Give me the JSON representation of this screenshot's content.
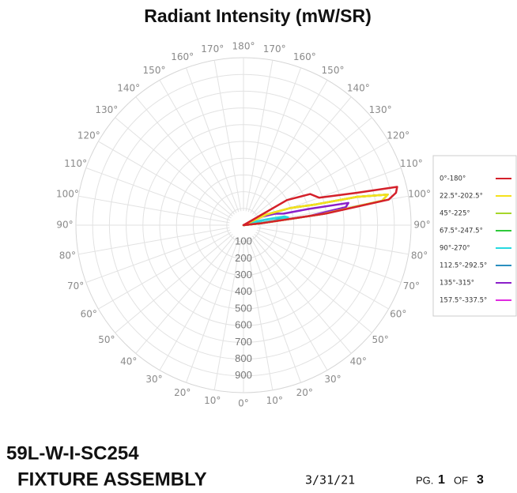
{
  "chart_data": {
    "type": "polar",
    "title": "Radiant Intensity (mW/SR)",
    "angles": [
      90,
      94,
      96,
      98,
      100,
      102,
      104,
      106,
      110,
      115,
      120,
      130
    ],
    "rlim": [
      0,
      1000
    ],
    "rticks": [
      100,
      200,
      300,
      400,
      500,
      600,
      700,
      800,
      900
    ],
    "angle_ticks": [
      {
        "value": 0,
        "label": "0°"
      },
      {
        "value": 10,
        "label": "10°"
      },
      {
        "value": 20,
        "label": "20°"
      },
      {
        "value": 30,
        "label": "30°"
      },
      {
        "value": 40,
        "label": "40°"
      },
      {
        "value": 50,
        "label": "50°"
      },
      {
        "value": 60,
        "label": "60°"
      },
      {
        "value": 70,
        "label": "70°"
      },
      {
        "value": 80,
        "label": "80°"
      },
      {
        "value": 90,
        "label": "90°"
      },
      {
        "value": 100,
        "label": "100°"
      },
      {
        "value": 110,
        "label": "110°"
      },
      {
        "value": 120,
        "label": "120°"
      },
      {
        "value": 130,
        "label": "130°"
      },
      {
        "value": 140,
        "label": "140°"
      },
      {
        "value": 150,
        "label": "150°"
      },
      {
        "value": 160,
        "label": "160°"
      },
      {
        "value": 170,
        "label": "170°"
      },
      {
        "value": 180,
        "label": "180°"
      }
    ],
    "grid": true,
    "series": [
      {
        "name": "0°-180°",
        "color": "#d4202a",
        "values": [
          0,
          0,
          100,
          500,
          880,
          930,
          945,
          700,
          480,
          440,
          300,
          0
        ]
      },
      {
        "name": "22.5°-202.5°",
        "color": "#f5e11c",
        "values": [
          0,
          0,
          100,
          480,
          840,
          880,
          700,
          450,
          300,
          150,
          0,
          0
        ]
      },
      {
        "name": "45°-225°",
        "color": "#a6d62a",
        "values": [
          0,
          0,
          100,
          480,
          840,
          880,
          700,
          450,
          300,
          150,
          0,
          0
        ]
      },
      {
        "name": "67.5°-247.5°",
        "color": "#2ec93a",
        "values": [
          0,
          0,
          100,
          480,
          840,
          880,
          700,
          450,
          300,
          150,
          0,
          0
        ]
      },
      {
        "name": "90°-270°",
        "color": "#27d9e0",
        "values": [
          0,
          0,
          50,
          200,
          270,
          250,
          150,
          80,
          0,
          0,
          0,
          0
        ]
      },
      {
        "name": "112.5°-292.5°",
        "color": "#2a8fbf",
        "values": [
          0,
          0,
          40,
          180,
          250,
          230,
          130,
          70,
          0,
          0,
          0,
          0
        ]
      },
      {
        "name": "135°-315°",
        "color": "#8b1fc9",
        "values": [
          0,
          0,
          80,
          400,
          620,
          640,
          400,
          250,
          200,
          120,
          0,
          0
        ]
      },
      {
        "name": "157.5°-337.5°",
        "color": "#e02ae0",
        "values": [
          0,
          0,
          100,
          480,
          840,
          880,
          700,
          450,
          300,
          150,
          0,
          0
        ]
      }
    ]
  },
  "footer": {
    "model": "59L-W-I-SC254",
    "subtitle": "FIXTURE ASSEMBLY",
    "date": "3/31/21",
    "page_prefix": "PG.",
    "page": "1",
    "of": "OF",
    "pages": "3"
  }
}
